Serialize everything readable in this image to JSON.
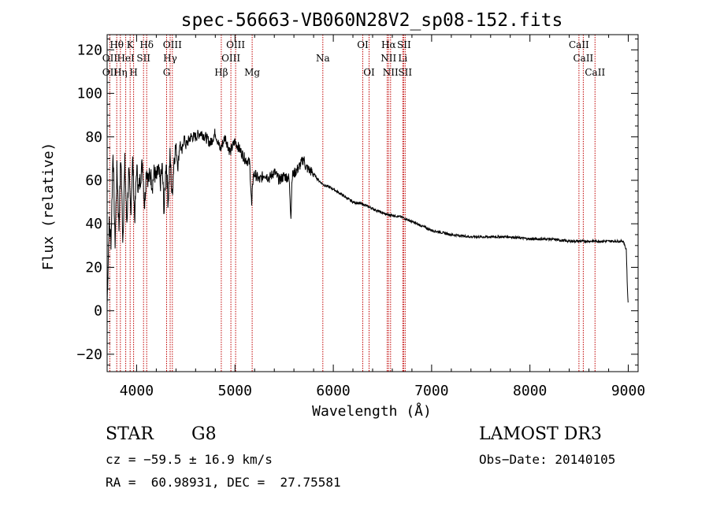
{
  "chart_data": {
    "type": "line",
    "title": "spec-56663-VB060N28V2_sp08-152.fits",
    "xlabel": "Wavelength (Å)",
    "ylabel": "Flux (relative)",
    "xlim": [
      3700,
      9100
    ],
    "ylim": [
      -28,
      127
    ],
    "xticks": [
      4000,
      5000,
      6000,
      7000,
      8000,
      9000
    ],
    "yticks": [
      -20,
      0,
      20,
      40,
      60,
      80,
      100,
      120
    ],
    "series": [
      {
        "name": "flux",
        "x": [
          3700,
          3720,
          3740,
          3760,
          3780,
          3800,
          3820,
          3840,
          3860,
          3880,
          3900,
          3920,
          3940,
          3960,
          3980,
          4000,
          4020,
          4040,
          4060,
          4080,
          4100,
          4120,
          4140,
          4160,
          4180,
          4200,
          4220,
          4240,
          4260,
          4280,
          4300,
          4320,
          4340,
          4360,
          4380,
          4400,
          4420,
          4440,
          4460,
          4480,
          4500,
          4550,
          4600,
          4650,
          4700,
          4750,
          4800,
          4850,
          4900,
          4950,
          5000,
          5050,
          5100,
          5150,
          5170,
          5185,
          5200,
          5250,
          5300,
          5350,
          5400,
          5450,
          5500,
          5550,
          5570,
          5580,
          5600,
          5650,
          5700,
          5720,
          5750,
          5800,
          5850,
          5900,
          6000,
          6100,
          6200,
          6300,
          6400,
          6500,
          6563,
          6600,
          6700,
          6800,
          6900,
          7000,
          7100,
          7200,
          7400,
          7600,
          7800,
          8000,
          8200,
          8400,
          8600,
          8800,
          8950,
          8980,
          8990,
          9000
        ],
        "y": [
          3,
          40,
          32,
          75,
          30,
          66,
          38,
          72,
          32,
          68,
          40,
          64,
          45,
          70,
          42,
          66,
          55,
          62,
          68,
          48,
          66,
          60,
          63,
          58,
          64,
          60,
          65,
          58,
          66,
          45,
          70,
          50,
          72,
          52,
          70,
          76,
          66,
          78,
          72,
          80,
          76,
          80,
          80,
          82,
          80,
          77,
          82,
          74,
          80,
          73,
          78,
          74,
          70,
          68,
          48,
          62,
          63,
          60,
          63,
          61,
          64,
          60,
          62,
          61,
          43,
          62,
          63,
          66,
          70,
          66,
          65,
          63,
          60,
          58,
          56,
          53,
          50,
          49,
          47,
          45,
          44,
          44,
          43,
          41,
          39,
          37,
          36,
          35,
          34,
          34,
          34,
          33,
          33,
          32,
          32,
          32,
          32,
          28,
          12,
          1
        ]
      }
    ],
    "line_markers": [
      {
        "name": "OII",
        "wavelength": 3727
      },
      {
        "name": "Hθ",
        "wavelength": 3798
      },
      {
        "name": "Hη",
        "wavelength": 3835
      },
      {
        "name": "HeI",
        "wavelength": 3889
      },
      {
        "name": "K",
        "wavelength": 3934
      },
      {
        "name": "H",
        "wavelength": 3969
      },
      {
        "name": "SII",
        "wavelength": 4070
      },
      {
        "name": "Hδ",
        "wavelength": 4102
      },
      {
        "name": "G",
        "wavelength": 4305
      },
      {
        "name": "Hγ",
        "wavelength": 4341
      },
      {
        "name": "OIII",
        "wavelength": 4363
      },
      {
        "name": "Hβ",
        "wavelength": 4861
      },
      {
        "name": "OIII",
        "wavelength": 4959
      },
      {
        "name": "OIII",
        "wavelength": 5007
      },
      {
        "name": "Mg",
        "wavelength": 5175
      },
      {
        "name": "Na",
        "wavelength": 5894
      },
      {
        "name": "OI",
        "wavelength": 6300
      },
      {
        "name": "OI",
        "wavelength": 6364
      },
      {
        "name": "NII",
        "wavelength": 6548
      },
      {
        "name": "Hα",
        "wavelength": 6563
      },
      {
        "name": "NII",
        "wavelength": 6583
      },
      {
        "name": "Li",
        "wavelength": 6707
      },
      {
        "name": "SII",
        "wavelength": 6716
      },
      {
        "name": "SII",
        "wavelength": 6731
      },
      {
        "name": "CaII",
        "wavelength": 8498
      },
      {
        "name": "CaII",
        "wavelength": 8542
      },
      {
        "name": "CaII",
        "wavelength": 8662
      }
    ],
    "marker_labels": [
      {
        "text": "OII",
        "wavelength": 3727,
        "row": 2
      },
      {
        "text": "OII",
        "wavelength": 3727,
        "row": 3
      },
      {
        "text": "Hθ",
        "wavelength": 3798,
        "row": 1
      },
      {
        "text": "Hη",
        "wavelength": 3835,
        "row": 3
      },
      {
        "text": "HeI",
        "wavelength": 3889,
        "row": 2
      },
      {
        "text": "K",
        "wavelength": 3934,
        "row": 1
      },
      {
        "text": "H",
        "wavelength": 3969,
        "row": 3
      },
      {
        "text": "SII",
        "wavelength": 4070,
        "row": 2
      },
      {
        "text": "Hδ",
        "wavelength": 4102,
        "row": 1
      },
      {
        "text": "G",
        "wavelength": 4305,
        "row": 3
      },
      {
        "text": "Hγ",
        "wavelength": 4341,
        "row": 2
      },
      {
        "text": "OIII",
        "wavelength": 4363,
        "row": 1
      },
      {
        "text": "Hβ",
        "wavelength": 4861,
        "row": 3
      },
      {
        "text": "OIII",
        "wavelength": 4959,
        "row": 2
      },
      {
        "text": "OIII",
        "wavelength": 5007,
        "row": 1
      },
      {
        "text": "Mg",
        "wavelength": 5175,
        "row": 3
      },
      {
        "text": "Na",
        "wavelength": 5894,
        "row": 2
      },
      {
        "text": "OI",
        "wavelength": 6300,
        "row": 1
      },
      {
        "text": "OI",
        "wavelength": 6364,
        "row": 3
      },
      {
        "text": "Hα",
        "wavelength": 6563,
        "row": 1
      },
      {
        "text": "NII",
        "wavelength": 6563,
        "row": 2
      },
      {
        "text": "NII",
        "wavelength": 6583,
        "row": 3
      },
      {
        "text": "SII",
        "wavelength": 6720,
        "row": 1
      },
      {
        "text": "Li",
        "wavelength": 6707,
        "row": 2
      },
      {
        "text": "SII",
        "wavelength": 6731,
        "row": 3
      },
      {
        "text": "CaII",
        "wavelength": 8498,
        "row": 1
      },
      {
        "text": "CaII",
        "wavelength": 8542,
        "row": 2
      },
      {
        "text": "CaII",
        "wavelength": 8662,
        "row": 3
      }
    ],
    "colors": {
      "spectrum": "#000000",
      "marker": "#c00000",
      "axes": "#000000"
    }
  },
  "info": {
    "object_class": "STAR",
    "subclass": "G8",
    "survey": "LAMOST DR3",
    "redshift": "cz = −59.5 ± 16.9 km/s",
    "obs_date": "Obs−Date: 20140105",
    "coords": "RA =  60.98931, DEC =  27.75581"
  }
}
